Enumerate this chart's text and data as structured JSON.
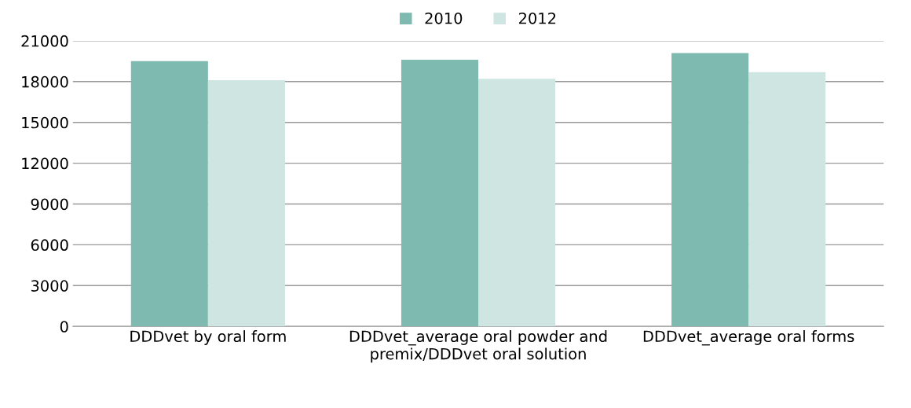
{
  "chart_data": {
    "type": "bar",
    "categories": [
      "DDDvet by oral form",
      "DDDvet_average oral powder and premix/DDDvet oral solution",
      "DDDvet_average oral forms"
    ],
    "series": [
      {
        "name": "2010",
        "color": "#7fbab1",
        "values": [
          19500,
          19600,
          20100
        ]
      },
      {
        "name": "2012",
        "color": "#cfe5e1",
        "values": [
          18100,
          18200,
          18700
        ]
      }
    ],
    "ylim": [
      0,
      21000
    ],
    "yticks": [
      0,
      3000,
      6000,
      9000,
      12000,
      15000,
      18000,
      21000
    ],
    "grid": "y",
    "legend": "top"
  }
}
